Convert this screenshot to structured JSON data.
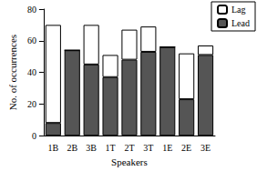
{
  "chart_data": {
    "type": "bar",
    "stacked": true,
    "x_label": "Speakers",
    "y_label": "No. of occurrences",
    "categories": [
      "1B",
      "2B",
      "3B",
      "1T",
      "2T",
      "3T",
      "1E",
      "2E",
      "3E"
    ],
    "series": [
      {
        "name": "Lead",
        "color": "#555555",
        "values": [
          8,
          54,
          45,
          37,
          48,
          53,
          56,
          23,
          51
        ]
      },
      {
        "name": "Lag",
        "color": "#ffffff",
        "values": [
          62,
          0,
          25,
          14,
          19,
          16,
          0,
          29,
          6
        ]
      }
    ],
    "ylim": [
      0,
      80
    ],
    "yticks": [
      0,
      20,
      40,
      60,
      80
    ],
    "grid": false,
    "legend": "top-right"
  }
}
